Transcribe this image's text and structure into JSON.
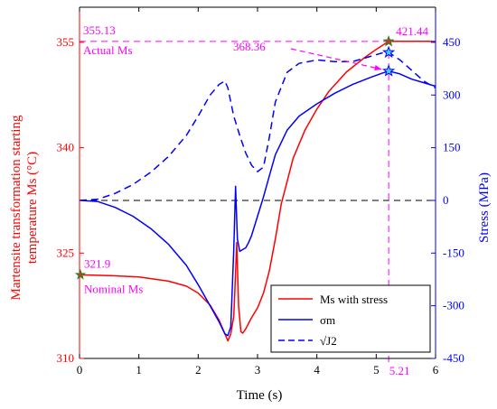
{
  "chart_data": {
    "type": "line",
    "xlabel": "Time (s)",
    "ylabel_left_line1": "Martensite transformation starting",
    "ylabel_left_line2": "temperature Ms (°C)",
    "ylabel_right": "Stress (MPa)",
    "xlim": [
      0,
      6
    ],
    "ylim_left": [
      310,
      360
    ],
    "ylim_right": [
      -450,
      550
    ],
    "x_ticks": [
      0,
      1,
      2,
      3,
      4,
      5,
      6
    ],
    "y_left_ticks": [
      310,
      325,
      340,
      355
    ],
    "y_right_ticks": [
      -450,
      -300,
      -150,
      0,
      150,
      300,
      450
    ],
    "grid": false,
    "legend_position": "bottom-right",
    "colors": {
      "ms": "#ff0000",
      "sigma_m": "#0000ff",
      "j2": "#0000ff",
      "left_axis": "#ff0000",
      "right_axis": "#0000ff",
      "annotation": "#ff00ff",
      "zero_line": "#000000"
    },
    "series": [
      {
        "name": "Ms with stress",
        "axis": "left",
        "style": "solid",
        "x": [
          0,
          0.5,
          1.0,
          1.5,
          1.8,
          2.0,
          2.2,
          2.35,
          2.45,
          2.5,
          2.55,
          2.6,
          2.62,
          2.65,
          2.68,
          2.72,
          2.75,
          2.8,
          2.85,
          2.9,
          3.0,
          3.1,
          3.2,
          3.3,
          3.4,
          3.6,
          3.8,
          4.0,
          4.2,
          4.5,
          4.8,
          5.0,
          5.21,
          5.4,
          5.6,
          5.8,
          6.0
        ],
        "y": [
          321.9,
          321.8,
          321.6,
          321.0,
          320.3,
          319.3,
          317.6,
          315.5,
          313.5,
          312.5,
          313.5,
          316,
          320,
          326.5,
          317.5,
          313.8,
          313.6,
          314.2,
          315,
          315.8,
          317.2,
          319.3,
          322.5,
          327,
          332,
          338.5,
          342.5,
          345.5,
          348,
          350.8,
          352.8,
          354,
          355.13,
          355.15,
          355.15,
          355.15,
          355.13
        ]
      },
      {
        "name": "σm",
        "axis": "right",
        "style": "solid",
        "x": [
          0,
          0.3,
          0.6,
          0.9,
          1.2,
          1.5,
          1.8,
          2.0,
          2.2,
          2.35,
          2.45,
          2.5,
          2.55,
          2.6,
          2.63,
          2.66,
          2.7,
          2.75,
          2.8,
          2.85,
          2.9,
          3.0,
          3.1,
          3.2,
          3.3,
          3.5,
          3.7,
          4.0,
          4.3,
          4.6,
          4.9,
          5.1,
          5.21,
          5.4,
          5.6,
          5.8,
          6.0
        ],
        "y": [
          0,
          -3,
          -20,
          -45,
          -80,
          -125,
          -185,
          -240,
          -300,
          -345,
          -380,
          -385,
          -360,
          -140,
          40,
          -110,
          -145,
          -140,
          -135,
          -120,
          -100,
          -45,
          10,
          70,
          130,
          200,
          240,
          275,
          305,
          330,
          350,
          362,
          368.36,
          360,
          345,
          335,
          325
        ]
      },
      {
        "name": "√J2",
        "axis": "right",
        "style": "dashed",
        "x": [
          0,
          0.3,
          0.6,
          0.9,
          1.2,
          1.5,
          1.8,
          2.0,
          2.2,
          2.35,
          2.45,
          2.5,
          2.55,
          2.6,
          2.7,
          2.8,
          2.9,
          3.0,
          3.1,
          3.2,
          3.3,
          3.5,
          3.7,
          4.0,
          4.3,
          4.6,
          4.9,
          5.1,
          5.21,
          5.4,
          5.6,
          5.8,
          6.0
        ],
        "y": [
          0,
          3,
          20,
          45,
          80,
          125,
          185,
          240,
          300,
          330,
          340,
          320,
          280,
          240,
          185,
          135,
          100,
          82,
          95,
          180,
          280,
          365,
          390,
          400,
          395,
          395,
          410,
          420,
          421.44,
          400,
          370,
          340,
          320
        ]
      }
    ],
    "annotations": {
      "actual_ms_value": "355.13",
      "actual_ms_label": "Actual Ms",
      "nominal_ms_value": "321.9",
      "nominal_ms_label": "Nominal Ms",
      "j2_peak_value": "421.44",
      "sigma_peak_value": "368.36",
      "time_marker": "5.21"
    },
    "markers": [
      {
        "series": "Nominal Ms",
        "x": 0,
        "y": 321.9,
        "axis": "left"
      },
      {
        "series": "Actual Ms",
        "x": 5.21,
        "y": 355.13,
        "axis": "left"
      },
      {
        "series": "σm peak",
        "x": 5.21,
        "y": 368.36,
        "axis": "right"
      },
      {
        "series": "√J2 peak",
        "x": 5.21,
        "y": 421.44,
        "axis": "right"
      }
    ]
  }
}
